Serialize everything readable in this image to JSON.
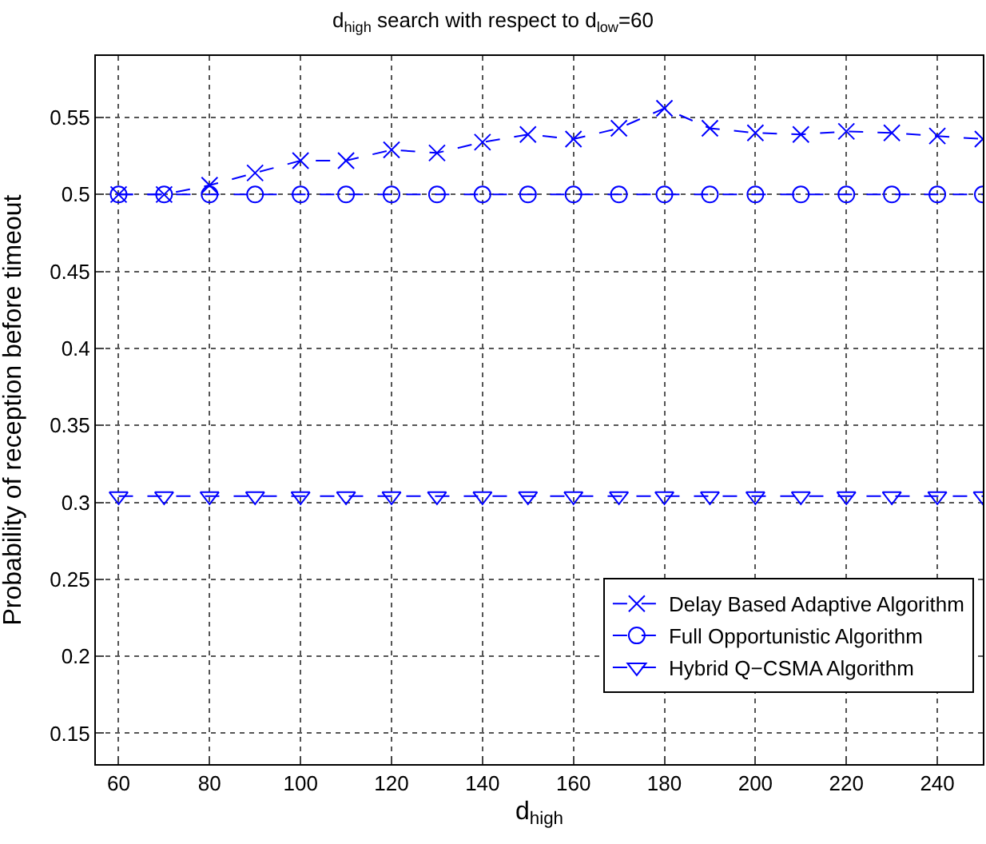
{
  "chart_data": {
    "type": "line",
    "title": "d$_{high}$ search with respect to d$_{low}$=60",
    "xlabel": "d$_{high}$",
    "ylabel": "Probability of reception before timeout",
    "x": [
      60,
      70,
      80,
      90,
      100,
      110,
      120,
      130,
      140,
      150,
      160,
      170,
      180,
      190,
      200,
      210,
      220,
      230,
      240,
      250
    ],
    "series": [
      {
        "name": "Delay Based Adaptive Algorithm",
        "color": "#0000ff",
        "marker": "cross",
        "values": [
          0.5,
          0.5,
          0.506,
          0.514,
          0.522,
          0.522,
          0.529,
          0.527,
          0.534,
          0.539,
          0.536,
          0.543,
          0.556,
          0.543,
          0.54,
          0.539,
          0.541,
          0.54,
          0.538,
          0.536
        ]
      },
      {
        "name": "Full Opportunistic Algorithm",
        "color": "#0000ff",
        "marker": "circle",
        "values": [
          0.5,
          0.5,
          0.5,
          0.5,
          0.5,
          0.5,
          0.5,
          0.5,
          0.5,
          0.5,
          0.5,
          0.5,
          0.5,
          0.5,
          0.5,
          0.5,
          0.5,
          0.5,
          0.5,
          0.5
        ]
      },
      {
        "name": "Hybrid Q−CSMA Algorithm",
        "color": "#0000ff",
        "marker": "triangle",
        "values": [
          0.304,
          0.304,
          0.304,
          0.304,
          0.304,
          0.304,
          0.304,
          0.304,
          0.304,
          0.304,
          0.304,
          0.304,
          0.304,
          0.304,
          0.304,
          0.304,
          0.304,
          0.304,
          0.304,
          0.304
        ]
      }
    ],
    "line_style": "dashed",
    "xlim": [
      55,
      250
    ],
    "xticks": [
      60,
      80,
      100,
      120,
      140,
      160,
      180,
      200,
      220,
      240
    ],
    "ylim": [
      0.13,
      0.59
    ],
    "yticks": [
      0.15,
      0.2,
      0.25,
      0.3,
      0.35,
      0.4,
      0.45,
      0.5,
      0.55
    ],
    "grid": true,
    "legend": "bottom right"
  }
}
